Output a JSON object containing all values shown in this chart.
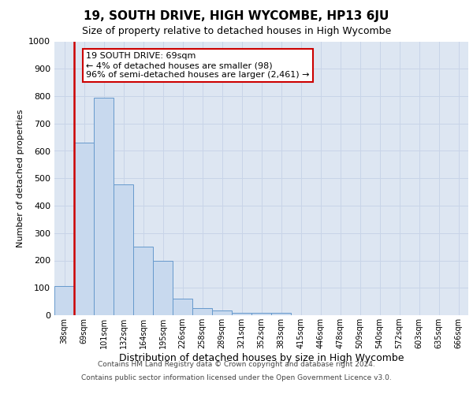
{
  "title": "19, SOUTH DRIVE, HIGH WYCOMBE, HP13 6JU",
  "subtitle": "Size of property relative to detached houses in High Wycombe",
  "xlabel": "Distribution of detached houses by size in High Wycombe",
  "ylabel": "Number of detached properties",
  "footer_line1": "Contains HM Land Registry data © Crown copyright and database right 2024.",
  "footer_line2": "Contains public sector information licensed under the Open Government Licence v3.0.",
  "categories": [
    "38sqm",
    "69sqm",
    "101sqm",
    "132sqm",
    "164sqm",
    "195sqm",
    "226sqm",
    "258sqm",
    "289sqm",
    "321sqm",
    "352sqm",
    "383sqm",
    "415sqm",
    "446sqm",
    "478sqm",
    "509sqm",
    "540sqm",
    "572sqm",
    "603sqm",
    "635sqm",
    "666sqm"
  ],
  "values": [
    107,
    630,
    795,
    478,
    250,
    200,
    60,
    25,
    17,
    10,
    10,
    10,
    0,
    0,
    0,
    0,
    0,
    0,
    0,
    0,
    0
  ],
  "bar_color": "#c8d9ee",
  "bar_edge_color": "#6699cc",
  "highlight_bar_index": 1,
  "highlight_color": "#cc0000",
  "ylim": [
    0,
    1000
  ],
  "yticks": [
    0,
    100,
    200,
    300,
    400,
    500,
    600,
    700,
    800,
    900,
    1000
  ],
  "annotation_text": "19 SOUTH DRIVE: 69sqm\n← 4% of detached houses are smaller (98)\n96% of semi-detached houses are larger (2,461) →",
  "annotation_box_facecolor": "#ffffff",
  "annotation_box_edgecolor": "#cc0000",
  "grid_color": "#c8d4e8",
  "background_color": "#dde6f2",
  "title_fontsize": 11,
  "subtitle_fontsize": 9,
  "ylabel_fontsize": 8,
  "xlabel_fontsize": 9,
  "tick_fontsize": 8,
  "xtick_fontsize": 7,
  "footer_fontsize": 6.5,
  "annotation_fontsize": 8
}
